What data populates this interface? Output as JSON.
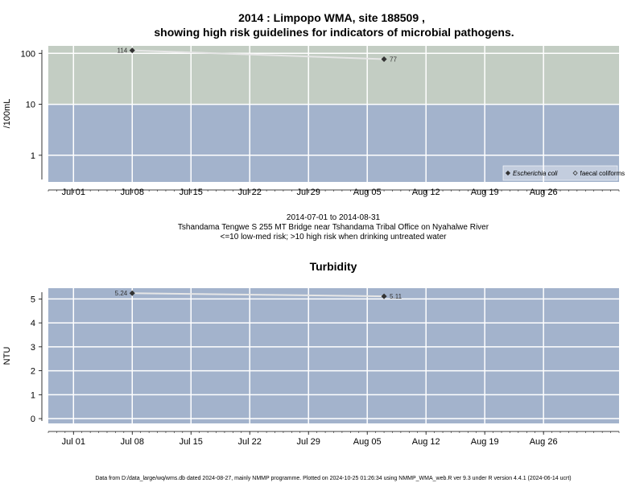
{
  "page_title_line1": "2014 : Limpopo WMA, site 188509 ,",
  "page_title_line2": "showing high risk guidelines for indicators of microbial pathogens.",
  "subtitle": {
    "date_range": "2014-07-01 to 2014-08-31",
    "site_name": "Tshandama Tengwe S 255 MT Bridge near Tshandama Tribal Office on Nyahalwe River",
    "risk_note": "<=10 low-med risk; >10 high risk when drinking untreated water"
  },
  "footer": "Data from D:/data_large/wq/wms.db dated 2024-08-27, mainly NMMP programme. Plotted on 2024-10-25 01:26:34 using NMMP_WMA_web.R ver 9.3 under R version 4.4.1 (2024-06-14 ucrt)",
  "colors": {
    "low_risk": "#a3b3cc",
    "high_risk": "#c3cdc3",
    "grid": "#ffffff",
    "line": "#e6e6e6",
    "point": "#333333"
  },
  "chart_data": [
    {
      "type": "line",
      "title": "",
      "xlabel": "",
      "ylabel": "/100mL",
      "y_scale": "log",
      "ylim": [
        0.3,
        140
      ],
      "xlim": [
        "2014-06-28",
        "2014-09-04"
      ],
      "x_tick_labels": [
        "Jul 01",
        "Jul 08",
        "Jul 15",
        "Jul 22",
        "Jul 29",
        "Aug 05",
        "Aug 12",
        "Aug 19",
        "Aug 26"
      ],
      "y_tick_labels": [
        "1",
        "10",
        "100"
      ],
      "y_ticks": [
        1,
        10,
        100
      ],
      "bands": [
        {
          "from": 0.3,
          "to": 10,
          "color": "low_risk"
        },
        {
          "from": 10,
          "to": 140,
          "color": "high_risk"
        }
      ],
      "series": [
        {
          "name": "Escherichia coli",
          "marker": "filled-diamond",
          "points": [
            {
              "x": "2014-07-08",
              "y": 114,
              "label": "114"
            },
            {
              "x": "2014-08-07",
              "y": 77,
              "label": "77"
            }
          ]
        },
        {
          "name": "faecal coliforms",
          "marker": "open-diamond",
          "points": []
        }
      ],
      "legend_position": "bottom-right",
      "grid": true
    },
    {
      "type": "line",
      "title": "Turbidity",
      "xlabel": "",
      "ylabel": "NTU",
      "y_scale": "linear",
      "ylim": [
        -0.2,
        5.45
      ],
      "xlim": [
        "2014-06-28",
        "2014-09-04"
      ],
      "x_tick_labels": [
        "Jul 01",
        "Jul 08",
        "Jul 15",
        "Jul 22",
        "Jul 29",
        "Aug 05",
        "Aug 12",
        "Aug 19",
        "Aug 26"
      ],
      "y_tick_labels": [
        "0",
        "1",
        "2",
        "3",
        "4",
        "5"
      ],
      "y_ticks": [
        0,
        1,
        2,
        3,
        4,
        5
      ],
      "series": [
        {
          "name": "",
          "marker": "filled-diamond",
          "points": [
            {
              "x": "2014-07-08",
              "y": 5.24,
              "label": "5.24"
            },
            {
              "x": "2014-08-07",
              "y": 5.11,
              "label": "5.11"
            }
          ]
        }
      ],
      "grid": true
    }
  ]
}
